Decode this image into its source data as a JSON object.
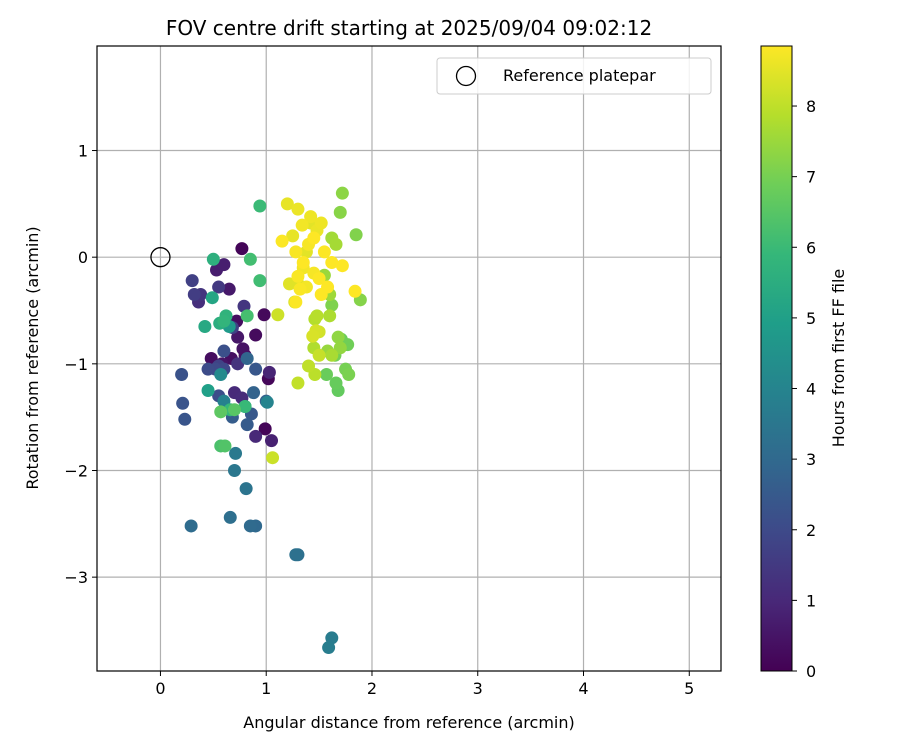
{
  "chart_data": {
    "type": "scatter",
    "title": "FOV centre drift starting at 2025/09/04 09:02:12",
    "xlabel": "Angular distance from reference (arcmin)",
    "ylabel": "Rotation from reference (arcmin)",
    "xlim": [
      -0.6,
      5.3
    ],
    "ylim": [
      -3.88,
      1.98
    ],
    "xticks": [
      0,
      1,
      2,
      3,
      4,
      5
    ],
    "yticks": [
      -3,
      -2,
      -1,
      0,
      1
    ],
    "grid": true,
    "legend": {
      "placement": "top-right",
      "entries": [
        "Reference platepar"
      ]
    },
    "reference_point": {
      "x": 0,
      "y": 0,
      "label": "Reference platepar"
    },
    "colorbar": {
      "label": "Hours from first FF file",
      "colormap": "viridis",
      "range": [
        0,
        8.85
      ],
      "ticks": [
        0,
        1,
        2,
        3,
        4,
        5,
        6,
        7,
        8
      ]
    },
    "points": [
      {
        "x": 0.77,
        "y": 0.08,
        "c": 0.1
      },
      {
        "x": 0.99,
        "y": -1.61,
        "c": 0.1
      },
      {
        "x": 1.02,
        "y": -1.14,
        "c": 0.15
      },
      {
        "x": 0.98,
        "y": -0.54,
        "c": 0.2
      },
      {
        "x": 0.9,
        "y": -0.73,
        "c": 0.25
      },
      {
        "x": 0.72,
        "y": -0.6,
        "c": 0.3
      },
      {
        "x": 0.48,
        "y": -0.95,
        "c": 0.3
      },
      {
        "x": 0.67,
        "y": -0.95,
        "c": 0.35
      },
      {
        "x": 0.8,
        "y": -0.92,
        "c": 0.4
      },
      {
        "x": 0.78,
        "y": -0.86,
        "c": 0.45
      },
      {
        "x": 0.58,
        "y": -1.0,
        "c": 0.5
      },
      {
        "x": 0.73,
        "y": -0.75,
        "c": 0.55
      },
      {
        "x": 0.65,
        "y": -0.3,
        "c": 0.6
      },
      {
        "x": 0.53,
        "y": -0.12,
        "c": 0.7
      },
      {
        "x": 0.6,
        "y": -0.07,
        "c": 0.75
      },
      {
        "x": 1.05,
        "y": -1.72,
        "c": 0.8
      },
      {
        "x": 1.03,
        "y": -1.08,
        "c": 0.9
      },
      {
        "x": 0.9,
        "y": -1.68,
        "c": 1.0
      },
      {
        "x": 0.7,
        "y": -1.27,
        "c": 1.05
      },
      {
        "x": 0.77,
        "y": -1.32,
        "c": 1.1
      },
      {
        "x": 0.36,
        "y": -0.42,
        "c": 1.2
      },
      {
        "x": 0.73,
        "y": -1.0,
        "c": 1.3
      },
      {
        "x": 0.38,
        "y": -0.35,
        "c": 1.35
      },
      {
        "x": 0.79,
        "y": -0.46,
        "c": 1.4
      },
      {
        "x": 0.55,
        "y": -0.28,
        "c": 1.5
      },
      {
        "x": 0.32,
        "y": -0.35,
        "c": 1.6
      },
      {
        "x": 0.3,
        "y": -0.22,
        "c": 1.7
      },
      {
        "x": 0.68,
        "y": -0.66,
        "c": 1.75
      },
      {
        "x": 0.55,
        "y": -1.02,
        "c": 1.8
      },
      {
        "x": 0.6,
        "y": -1.05,
        "c": 1.9
      },
      {
        "x": 0.52,
        "y": -1.05,
        "c": 2.0
      },
      {
        "x": 0.45,
        "y": -1.05,
        "c": 2.05
      },
      {
        "x": 0.55,
        "y": -1.3,
        "c": 2.1
      },
      {
        "x": 0.6,
        "y": -0.88,
        "c": 2.2
      },
      {
        "x": 0.2,
        "y": -1.1,
        "c": 2.25
      },
      {
        "x": 0.21,
        "y": -1.37,
        "c": 2.3
      },
      {
        "x": 0.23,
        "y": -1.52,
        "c": 2.35
      },
      {
        "x": 0.9,
        "y": -1.05,
        "c": 2.4
      },
      {
        "x": 0.86,
        "y": -1.47,
        "c": 2.45
      },
      {
        "x": 0.82,
        "y": -1.57,
        "c": 2.55
      },
      {
        "x": 0.68,
        "y": -1.5,
        "c": 2.6
      },
      {
        "x": 1.0,
        "y": -1.35,
        "c": 2.7
      },
      {
        "x": 0.88,
        "y": -1.27,
        "c": 2.8
      },
      {
        "x": 0.82,
        "y": -0.95,
        "c": 2.9
      },
      {
        "x": 0.9,
        "y": -2.52,
        "c": 3.0
      },
      {
        "x": 0.85,
        "y": -2.52,
        "c": 3.05
      },
      {
        "x": 0.29,
        "y": -2.52,
        "c": 3.1
      },
      {
        "x": 0.66,
        "y": -2.44,
        "c": 3.2
      },
      {
        "x": 1.3,
        "y": -2.79,
        "c": 3.25
      },
      {
        "x": 1.28,
        "y": -2.79,
        "c": 3.3
      },
      {
        "x": 0.81,
        "y": -2.17,
        "c": 3.4
      },
      {
        "x": 0.7,
        "y": -2.0,
        "c": 3.5
      },
      {
        "x": 0.71,
        "y": -1.84,
        "c": 3.6
      },
      {
        "x": 1.62,
        "y": -3.57,
        "c": 3.7
      },
      {
        "x": 1.59,
        "y": -3.66,
        "c": 3.75
      },
      {
        "x": 0.6,
        "y": -1.35,
        "c": 3.9
      },
      {
        "x": 1.01,
        "y": -1.36,
        "c": 4.0
      },
      {
        "x": 0.57,
        "y": -1.1,
        "c": 4.2
      },
      {
        "x": 0.8,
        "y": -1.4,
        "c": 4.5
      },
      {
        "x": 0.65,
        "y": -0.65,
        "c": 4.8
      },
      {
        "x": 0.45,
        "y": -1.25,
        "c": 5.0
      },
      {
        "x": 0.49,
        "y": -0.38,
        "c": 5.2
      },
      {
        "x": 0.42,
        "y": -0.65,
        "c": 5.3
      },
      {
        "x": 0.56,
        "y": -0.62,
        "c": 5.5
      },
      {
        "x": 0.5,
        "y": -0.02,
        "c": 5.6
      },
      {
        "x": 0.62,
        "y": -0.55,
        "c": 5.7
      },
      {
        "x": 0.6,
        "y": -0.6,
        "c": 5.8
      },
      {
        "x": 0.66,
        "y": -1.43,
        "c": 5.9
      },
      {
        "x": 0.8,
        "y": -1.4,
        "c": 5.95
      },
      {
        "x": 0.94,
        "y": 0.48,
        "c": 6.0
      },
      {
        "x": 0.94,
        "y": -0.22,
        "c": 6.1
      },
      {
        "x": 0.85,
        "y": -0.02,
        "c": 6.15
      },
      {
        "x": 0.82,
        "y": -0.55,
        "c": 6.2
      },
      {
        "x": 0.57,
        "y": -1.77,
        "c": 6.3
      },
      {
        "x": 0.61,
        "y": -1.77,
        "c": 6.4
      },
      {
        "x": 0.7,
        "y": -1.43,
        "c": 6.5
      },
      {
        "x": 0.57,
        "y": -1.45,
        "c": 6.6
      },
      {
        "x": 1.68,
        "y": -1.25,
        "c": 6.7
      },
      {
        "x": 1.66,
        "y": -1.18,
        "c": 6.75
      },
      {
        "x": 1.57,
        "y": -1.1,
        "c": 6.8
      },
      {
        "x": 1.71,
        "y": -0.77,
        "c": 6.85
      },
      {
        "x": 1.77,
        "y": -0.82,
        "c": 6.9
      },
      {
        "x": 1.65,
        "y": -0.92,
        "c": 6.95
      },
      {
        "x": 1.75,
        "y": -1.05,
        "c": 7.0
      },
      {
        "x": 1.78,
        "y": -1.1,
        "c": 7.05
      },
      {
        "x": 1.62,
        "y": -0.45,
        "c": 7.1
      },
      {
        "x": 1.85,
        "y": 0.21,
        "c": 7.15
      },
      {
        "x": 1.89,
        "y": -0.4,
        "c": 7.2
      },
      {
        "x": 1.7,
        "y": 0.42,
        "c": 7.25
      },
      {
        "x": 1.72,
        "y": 0.6,
        "c": 7.3
      },
      {
        "x": 1.68,
        "y": -0.75,
        "c": 7.35
      },
      {
        "x": 1.7,
        "y": -0.85,
        "c": 7.4
      },
      {
        "x": 1.58,
        "y": -0.88,
        "c": 7.45
      },
      {
        "x": 1.55,
        "y": -0.17,
        "c": 7.5
      },
      {
        "x": 1.6,
        "y": -0.35,
        "c": 7.55
      },
      {
        "x": 1.62,
        "y": 0.18,
        "c": 7.6
      },
      {
        "x": 1.66,
        "y": 0.12,
        "c": 7.65
      },
      {
        "x": 1.62,
        "y": -0.92,
        "c": 7.7
      },
      {
        "x": 1.6,
        "y": -0.55,
        "c": 7.75
      },
      {
        "x": 1.45,
        "y": -0.85,
        "c": 7.8
      },
      {
        "x": 1.46,
        "y": -0.58,
        "c": 7.85
      },
      {
        "x": 1.48,
        "y": -0.55,
        "c": 7.9
      },
      {
        "x": 1.46,
        "y": -1.1,
        "c": 7.95
      },
      {
        "x": 1.4,
        "y": -1.02,
        "c": 8.0
      },
      {
        "x": 1.3,
        "y": -1.18,
        "c": 8.05
      },
      {
        "x": 1.5,
        "y": -0.92,
        "c": 8.1
      },
      {
        "x": 1.06,
        "y": -1.88,
        "c": 8.15
      },
      {
        "x": 1.11,
        "y": -0.54,
        "c": 8.2
      },
      {
        "x": 1.5,
        "y": -0.7,
        "c": 8.25
      },
      {
        "x": 1.47,
        "y": -0.69,
        "c": 8.3
      },
      {
        "x": 1.27,
        "y": -0.42,
        "c": 8.35
      },
      {
        "x": 1.44,
        "y": -0.74,
        "c": 8.35
      },
      {
        "x": 1.3,
        "y": -0.25,
        "c": 8.4
      },
      {
        "x": 1.22,
        "y": -0.25,
        "c": 8.45
      },
      {
        "x": 1.38,
        "y": 0.05,
        "c": 8.5
      },
      {
        "x": 1.42,
        "y": 0.32,
        "c": 8.5
      },
      {
        "x": 1.2,
        "y": 0.5,
        "c": 8.55
      },
      {
        "x": 1.25,
        "y": 0.2,
        "c": 8.55
      },
      {
        "x": 1.3,
        "y": 0.45,
        "c": 8.6
      },
      {
        "x": 1.48,
        "y": 0.25,
        "c": 8.6
      },
      {
        "x": 1.52,
        "y": 0.32,
        "c": 8.65
      },
      {
        "x": 1.42,
        "y": 0.38,
        "c": 8.65
      },
      {
        "x": 1.34,
        "y": 0.3,
        "c": 8.7
      },
      {
        "x": 1.35,
        "y": -0.1,
        "c": 8.7
      },
      {
        "x": 1.38,
        "y": -0.28,
        "c": 8.72
      },
      {
        "x": 1.4,
        "y": 0.12,
        "c": 8.75
      },
      {
        "x": 1.45,
        "y": -0.15,
        "c": 8.75
      },
      {
        "x": 1.28,
        "y": 0.05,
        "c": 8.78
      },
      {
        "x": 1.3,
        "y": -0.18,
        "c": 8.8
      },
      {
        "x": 1.32,
        "y": -0.3,
        "c": 8.8
      },
      {
        "x": 1.28,
        "y": -0.42,
        "c": 8.82
      },
      {
        "x": 1.15,
        "y": 0.15,
        "c": 8.82
      },
      {
        "x": 1.55,
        "y": 0.05,
        "c": 8.84
      },
      {
        "x": 1.5,
        "y": -0.2,
        "c": 8.84
      },
      {
        "x": 1.62,
        "y": -0.05,
        "c": 8.85
      },
      {
        "x": 1.52,
        "y": -0.35,
        "c": 8.85
      },
      {
        "x": 1.45,
        "y": 0.18,
        "c": 8.85
      },
      {
        "x": 1.72,
        "y": -0.08,
        "c": 8.85
      },
      {
        "x": 1.84,
        "y": -0.32,
        "c": 8.85
      },
      {
        "x": 1.35,
        "y": -0.05,
        "c": 8.85
      },
      {
        "x": 1.58,
        "y": -0.28,
        "c": 8.85
      }
    ]
  }
}
